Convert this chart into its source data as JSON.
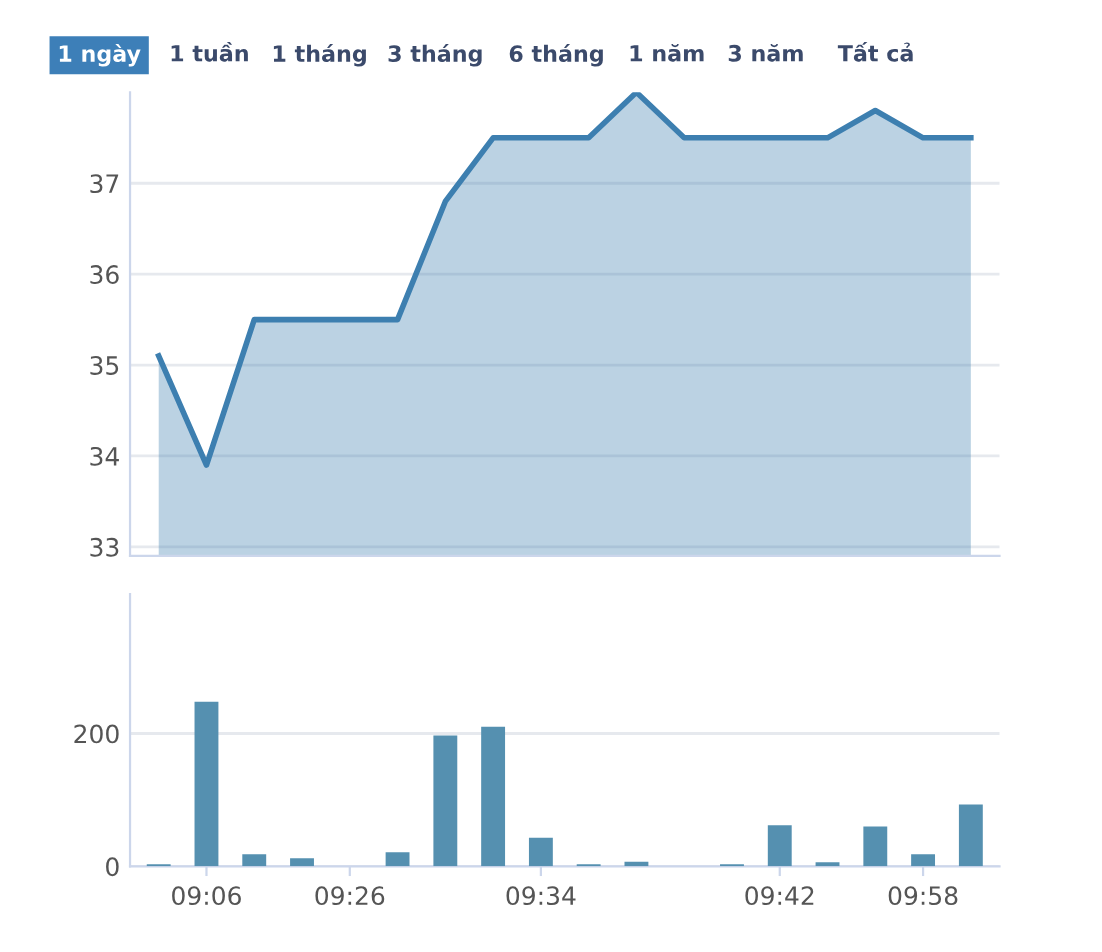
{
  "chart_data": [
    {
      "type": "area",
      "categories": [
        null,
        null,
        null,
        null,
        null,
        null,
        null,
        null,
        null,
        null,
        null,
        null,
        null,
        null,
        null,
        null,
        null,
        null
      ],
      "series": [
        {
          "color": "#3d7fb0",
          "values": [
            35.1,
            33.9,
            35.5,
            35.5,
            35.5,
            35.5,
            36.8,
            37.5,
            37.5,
            37.5,
            38.0,
            37.5,
            37.5,
            37.5,
            37.5,
            37.8,
            37.5,
            37.5
          ]
        }
      ],
      "ylim": [
        32.9,
        38.0
      ],
      "yticks": [
        33,
        34,
        35,
        36,
        37
      ],
      "grid": "y",
      "tick_labels": "y",
      "annotations": [
        "1 ngày",
        "1 tuần",
        "1 tháng",
        "3 tháng",
        "6 tháng",
        "1 năm",
        "3 năm",
        "Tất cả"
      ]
    },
    {
      "type": "bar",
      "categories": [
        null,
        "09:06",
        null,
        null,
        "09:26",
        null,
        null,
        null,
        "09:34",
        null,
        null,
        null,
        null,
        "09:42",
        null,
        null,
        "09:58",
        null
      ],
      "series": [
        {
          "color": "#5590b0",
          "values": [
            3,
            248,
            18,
            12,
            0,
            21,
            197,
            210,
            43,
            3,
            7,
            0,
            3,
            62,
            6,
            60,
            18,
            93
          ]
        }
      ],
      "ylim": [
        0,
        410
      ],
      "yticks": [
        0,
        200
      ],
      "grid": "y"
    }
  ]
}
